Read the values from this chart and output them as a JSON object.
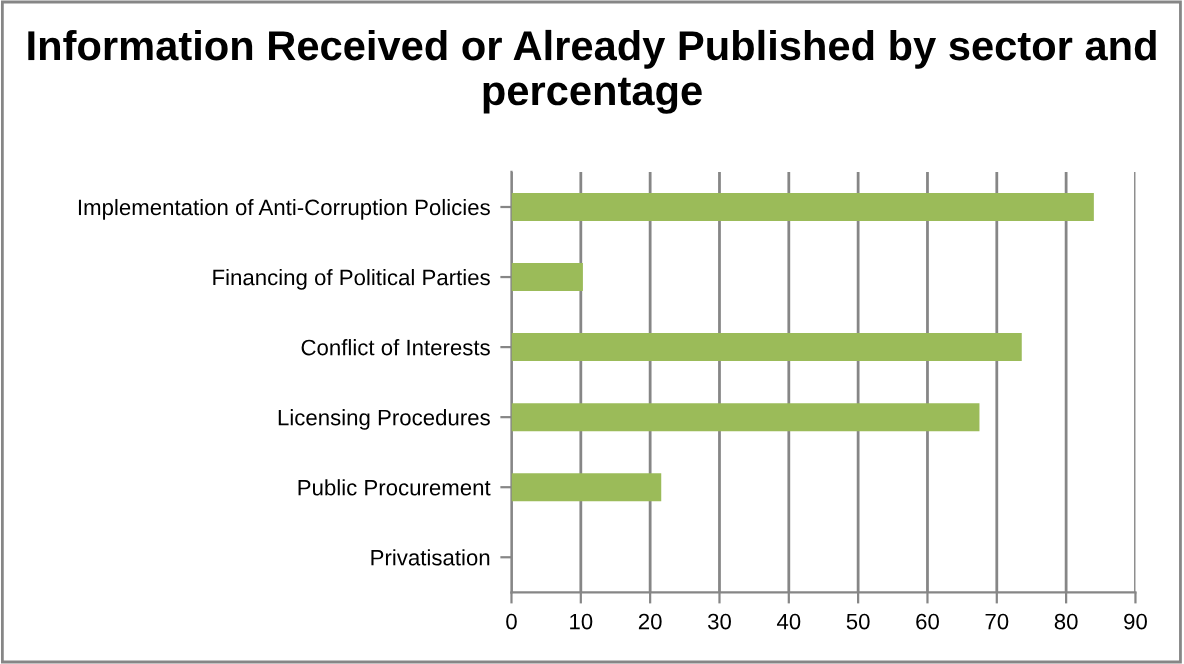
{
  "chart_data": {
    "type": "bar",
    "orientation": "horizontal",
    "title": "Information Received or Already Published by sector and percentage",
    "categories": [
      "Implementation of Anti-Corruption Policies",
      "Financing of Political Parties",
      "Conflict of Interests",
      "Licensing Procedures",
      "Public Procurement",
      "Privatisation"
    ],
    "values": [
      84,
      10.3,
      73.6,
      67.5,
      21.6,
      0
    ],
    "color": "#9bbb59",
    "xlim": [
      0,
      90
    ],
    "xticks": [
      0,
      10,
      20,
      30,
      40,
      50,
      60,
      70,
      80,
      90
    ],
    "grid": "x",
    "legend": false
  }
}
